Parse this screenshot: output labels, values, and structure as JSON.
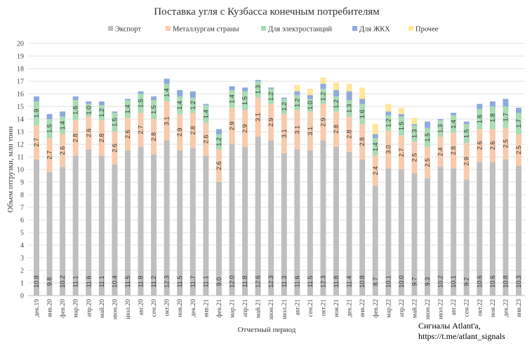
{
  "chart_data": {
    "type": "bar",
    "stacked": true,
    "title": "Поставка угля с Кузбасса конечным потребителям",
    "xlabel": "Отчетный период",
    "ylabel": "Объем отгрузки, млн тонн",
    "ylim": [
      0,
      20
    ],
    "yticks": [
      0,
      1,
      2,
      3,
      4,
      5,
      6,
      7,
      8,
      9,
      10,
      11,
      12,
      13,
      14,
      15,
      16,
      17,
      18,
      19,
      20
    ],
    "grid": true,
    "legend_position": "top",
    "categories": [
      "дек.19",
      "янв.20",
      "фев.20",
      "мар.20",
      "апр.20",
      "май.20",
      "июн.20",
      "июл.20",
      "авг.20",
      "сен.20",
      "окт.20",
      "ноя.20",
      "дек.20",
      "янв.21",
      "фев.21",
      "мар.21",
      "апр.21",
      "май.21",
      "июн.21",
      "июл.21",
      "авг.21",
      "сен.21",
      "окт.21",
      "ноя.21",
      "дек.21",
      "янв.22",
      "фев.22",
      "мар.22",
      "апр.22",
      "май.22",
      "июн.22",
      "июл.22",
      "авг.22",
      "сен.22",
      "окт.22",
      "ноя.22",
      "дек.22",
      "янв.23"
    ],
    "series": [
      {
        "name": "Экспорт",
        "color": "#bfbfbf",
        "labeled": true,
        "values": [
          10.8,
          9.8,
          10.2,
          11.1,
          11.6,
          11.1,
          10.4,
          11.5,
          11.8,
          11.2,
          12.3,
          11.5,
          11.7,
          11.1,
          9.0,
          12.0,
          11.8,
          12.6,
          12.3,
          11.3,
          11.6,
          11.5,
          12.3,
          11.8,
          11.4,
          10.8,
          8.7,
          10.1,
          10.0,
          9.7,
          9.3,
          10.2,
          10.1,
          9.2,
          10.6,
          10.6,
          10.8,
          10.3
        ]
      },
      {
        "name": "Металлургам страны",
        "color": "#f8cbad",
        "labeled": true,
        "values": [
          2.7,
          2.7,
          2.6,
          2.8,
          2.6,
          2.8,
          2.6,
          2.6,
          2.7,
          2.8,
          3.1,
          2.9,
          2.8,
          2.6,
          2.6,
          2.9,
          2.9,
          3.1,
          2.9,
          3.1,
          3.1,
          3.1,
          2.9,
          2.8,
          2.8,
          2.8,
          2.4,
          3.0,
          2.7,
          2.5,
          2.5,
          2.4,
          2.8,
          2.9,
          2.6,
          2.6,
          2.5,
          2.5
        ]
      },
      {
        "name": "Для электростанций",
        "color": "#a9dcb4",
        "labeled": true,
        "values": [
          1.9,
          1.5,
          1.4,
          1.6,
          1.0,
          1.2,
          1.5,
          1.4,
          1.5,
          1.5,
          1.4,
          1.4,
          1.2,
          1.4,
          1.2,
          1.4,
          1.5,
          1.3,
          1.2,
          1.2,
          1.2,
          1.0,
          1.2,
          1.2,
          1.3,
          1.6,
          1.4,
          1.2,
          1.5,
          1.3,
          1.5,
          1.3,
          1.4,
          1.5,
          1.6,
          1.8,
          1.7,
          1.7
        ]
      },
      {
        "name": "Для ЖКХ",
        "color": "#8eaadc",
        "labeled": false,
        "values": [
          0.4,
          0.4,
          0.4,
          0.3,
          0.2,
          0.3,
          0.1,
          0.1,
          0.2,
          0.3,
          0.4,
          0.5,
          0.5,
          0.1,
          0.4,
          0.3,
          0.3,
          0.1,
          0.1,
          0.1,
          0.3,
          0.3,
          0.4,
          0.5,
          0.7,
          0.4,
          0.3,
          0.3,
          0.2,
          0.1,
          0.5,
          0.1,
          0.2,
          0.2,
          0.4,
          0.4,
          0.6,
          0.4
        ]
      },
      {
        "name": "Прочее",
        "color": "#ffe699",
        "labeled": false,
        "values": [
          0,
          0,
          0,
          0,
          0,
          0,
          0,
          0,
          0,
          0,
          0,
          0,
          0,
          0,
          0,
          0,
          0,
          0,
          0,
          0,
          0.5,
          0.5,
          0.5,
          0.6,
          0.6,
          0.9,
          0.8,
          0.6,
          0.5,
          0.5,
          0,
          0,
          0,
          0,
          0,
          0,
          0,
          0
        ]
      }
    ]
  },
  "watermark": {
    "line1": "Сигналы Atlant'a,",
    "line2": "https://t.me/atlant_signals"
  }
}
